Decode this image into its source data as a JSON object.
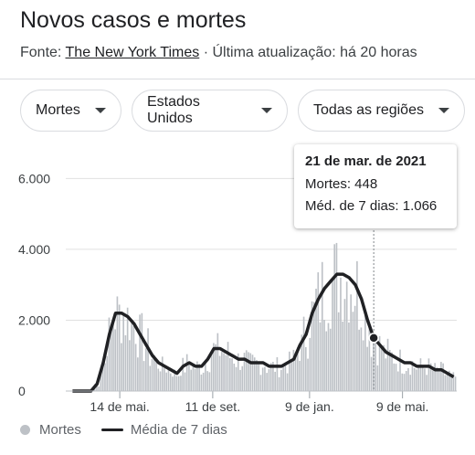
{
  "title": "Novos casos e mortes",
  "source": {
    "prefix": "Fonte: ",
    "link": "The New York Times",
    "suffix": " · Última atualização: há 20 horas"
  },
  "filters": [
    {
      "label": "Mortes"
    },
    {
      "label": "Estados Unidos"
    },
    {
      "label": "Todas as regiões"
    }
  ],
  "tooltip": {
    "date": "21 de mar. de 2021",
    "deaths": "Mortes: 448",
    "avg": "Méd. de 7 dias: 1.066"
  },
  "legend": {
    "bars": "Mortes",
    "line": "Média de 7 dias"
  },
  "colors": {
    "bars": "#bdc1c6",
    "line": "#202124",
    "grid": "#e0e0e0"
  },
  "chart_data": {
    "type": "bar",
    "ylim": [
      0,
      6500
    ],
    "yticks": [
      0,
      2000,
      4000,
      6000
    ],
    "ytick_labels": [
      "0",
      "2.000",
      "4.000",
      "6.000"
    ],
    "xtick_labels": [
      "14 de mai.",
      "11 de set.",
      "9 de jan.",
      "9 de mai."
    ],
    "series": [
      {
        "name": "Mortes",
        "kind": "bar",
        "values_weekly_avg_approx": [
          0,
          0,
          0,
          0,
          200,
          800,
          1600,
          2200,
          2200,
          2100,
          1900,
          1600,
          1300,
          1000,
          800,
          700,
          600,
          500,
          700,
          800,
          700,
          700,
          900,
          1200,
          1200,
          1100,
          1000,
          900,
          900,
          800,
          800,
          800,
          700,
          700,
          700,
          800,
          900,
          1300,
          1600,
          2200,
          2600,
          2900,
          3100,
          3300,
          3300,
          3200,
          3000,
          2600,
          2000,
          1500,
          1300,
          1100,
          1000,
          900,
          800,
          800,
          700,
          700,
          700,
          600,
          600,
          500,
          400
        ]
      },
      {
        "name": "Média de 7 dias",
        "kind": "line",
        "values_approx": [
          0,
          0,
          0,
          0,
          200,
          800,
          1600,
          2200,
          2200,
          2100,
          1900,
          1600,
          1300,
          1000,
          800,
          700,
          600,
          500,
          700,
          800,
          700,
          700,
          900,
          1200,
          1200,
          1100,
          1000,
          900,
          900,
          800,
          800,
          800,
          700,
          700,
          700,
          800,
          900,
          1300,
          1600,
          2200,
          2600,
          2900,
          3100,
          3300,
          3300,
          3200,
          3000,
          2600,
          2000,
          1500,
          1300,
          1100,
          1000,
          900,
          800,
          800,
          700,
          700,
          700,
          600,
          600,
          500,
          400
        ]
      }
    ]
  }
}
